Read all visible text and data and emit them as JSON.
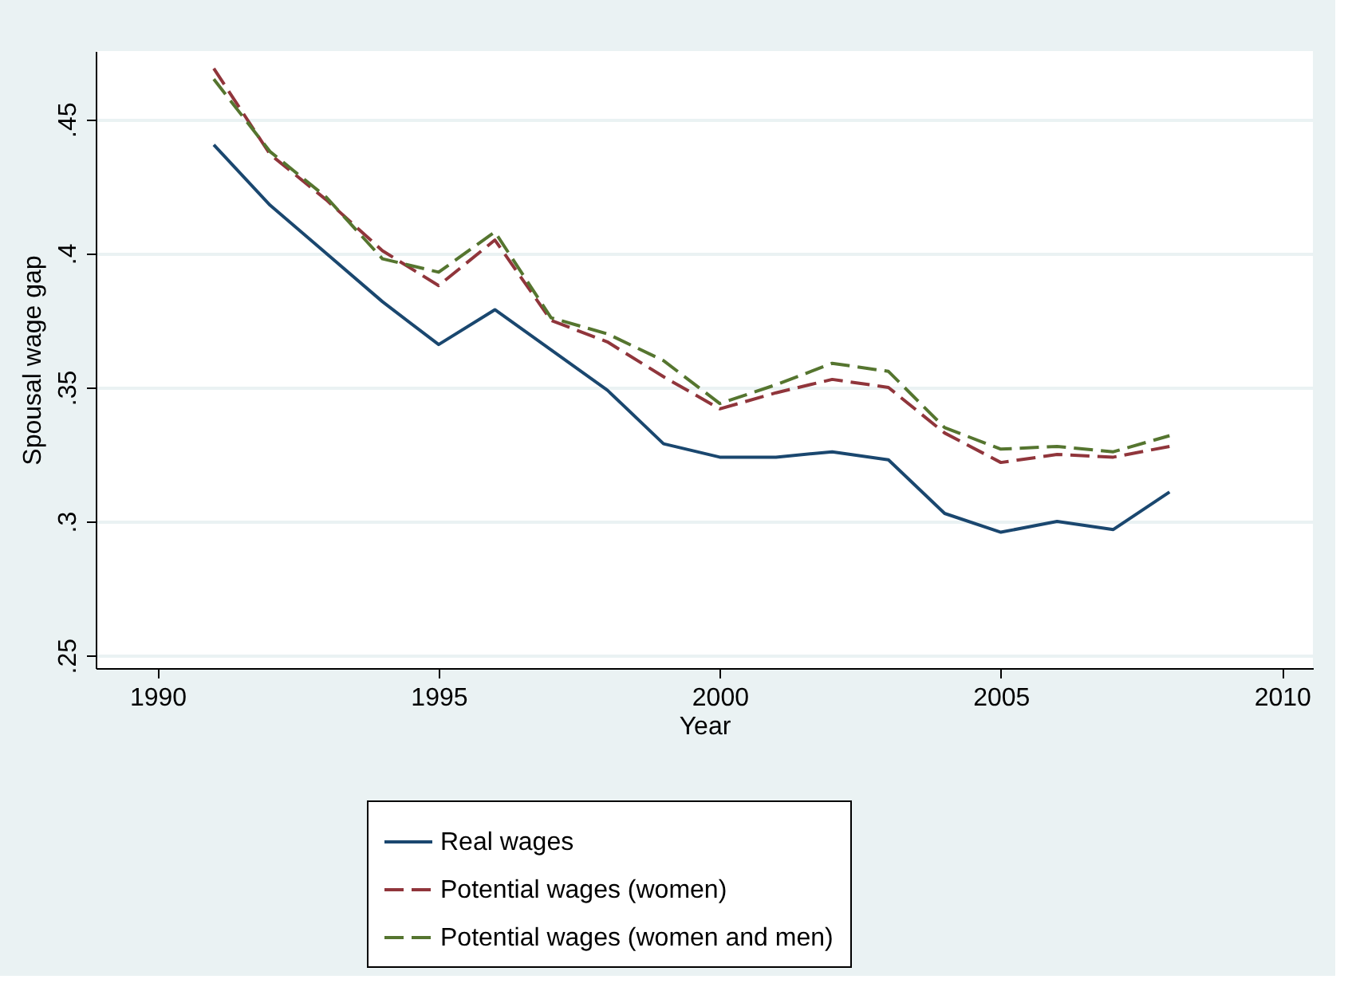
{
  "chart_data": {
    "type": "line",
    "xlabel": "Year",
    "ylabel": "Spousal wage gap",
    "x": [
      1991,
      1992,
      1993,
      1994,
      1995,
      1996,
      1997,
      1998,
      1999,
      2000,
      2001,
      2002,
      2003,
      2004,
      2005,
      2006,
      2007,
      2008
    ],
    "series": [
      {
        "name": "Real wages",
        "color": "#1a476f",
        "line_style": "solid",
        "values": [
          0.4405,
          0.418,
          0.4,
          0.382,
          0.366,
          0.379,
          0.364,
          0.349,
          0.329,
          0.324,
          0.324,
          0.326,
          0.323,
          0.303,
          0.296,
          0.3,
          0.297,
          0.311
        ]
      },
      {
        "name": "Potential wages (women)",
        "color": "#90353b",
        "line_style": "dashed",
        "values": [
          0.469,
          0.437,
          0.42,
          0.401,
          0.388,
          0.405,
          0.375,
          0.367,
          0.354,
          0.342,
          0.348,
          0.353,
          0.35,
          0.333,
          0.322,
          0.325,
          0.324,
          0.328
        ]
      },
      {
        "name": "Potential wages (women and men)",
        "color": "#55752f",
        "line_style": "dashed",
        "values": [
          0.465,
          0.438,
          0.421,
          0.398,
          0.393,
          0.408,
          0.376,
          0.37,
          0.36,
          0.344,
          0.351,
          0.359,
          0.356,
          0.335,
          0.327,
          0.328,
          0.326,
          0.332
        ]
      }
    ],
    "xlim": [
      1988.9,
      2010.55
    ],
    "xticks": [
      1990,
      1995,
      2000,
      2005,
      2010
    ],
    "ylim": [
      0.2453,
      0.4755
    ],
    "yticks": [
      {
        "value": 0.25,
        "label": ".25"
      },
      {
        "value": 0.3,
        "label": ".3"
      },
      {
        "value": 0.35,
        "label": ".35"
      },
      {
        "value": 0.4,
        "label": ".4"
      },
      {
        "value": 0.45,
        "label": ".45"
      }
    ],
    "grid": "y",
    "legend": "bottom",
    "marker": "none"
  }
}
